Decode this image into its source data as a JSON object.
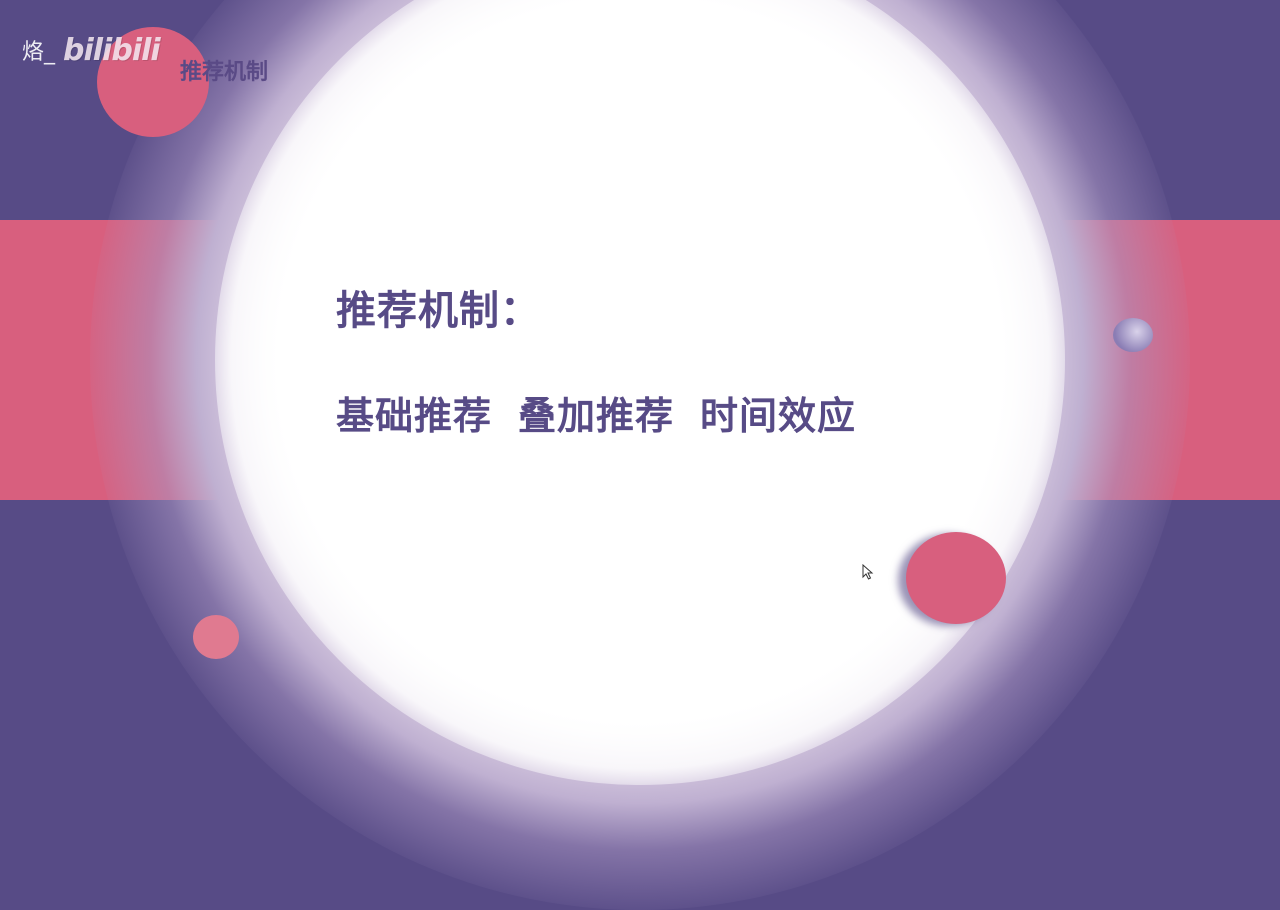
{
  "watermark": {
    "username": "烙_",
    "logo_text": "bilibili"
  },
  "slide": {
    "corner_title": "推荐机制",
    "heading": "推荐机制：",
    "items": [
      "基础推荐",
      "叠加推荐",
      "时间效应"
    ]
  },
  "colors": {
    "background_purple": "#574b86",
    "stripe_pink": "#d85f7e",
    "text_purple": "#574b86"
  }
}
